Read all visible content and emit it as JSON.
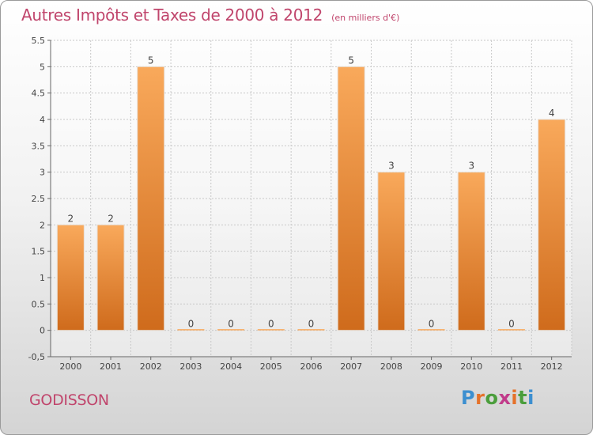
{
  "header": {
    "title": "Autres Impôts et Taxes de 2000 à 2012",
    "unit": "(en milliers d'€)"
  },
  "footer": {
    "commune": "GODISSON",
    "logo_text": "Proxiti"
  },
  "colors": {
    "title": "#c0456c",
    "bar_top": "#f9a95b",
    "bar_bottom": "#cf6b1c",
    "logo_letters": [
      "#3c8fd0",
      "#e5722a",
      "#4b9e3c",
      "#c13b8a",
      "#e5722a",
      "#4b9e3c",
      "#3c8fd0"
    ]
  },
  "chart_data": {
    "type": "bar",
    "title": "Autres Impôts et Taxes de 2000 à 2012",
    "xlabel": "",
    "ylabel": "",
    "categories": [
      "2000",
      "2001",
      "2002",
      "2003",
      "2004",
      "2005",
      "2006",
      "2007",
      "2008",
      "2009",
      "2010",
      "2011",
      "2012"
    ],
    "values": [
      2,
      2,
      5,
      0,
      0,
      0,
      0,
      5,
      3,
      0,
      3,
      0,
      4
    ],
    "ylim": [
      -0.5,
      5.5
    ],
    "yticks": [
      "-0,5",
      "0",
      "0.5",
      "1",
      "1.5",
      "2",
      "2.5",
      "3",
      "3.5",
      "4",
      "4.5",
      "5",
      "5.5"
    ],
    "grid": true
  }
}
